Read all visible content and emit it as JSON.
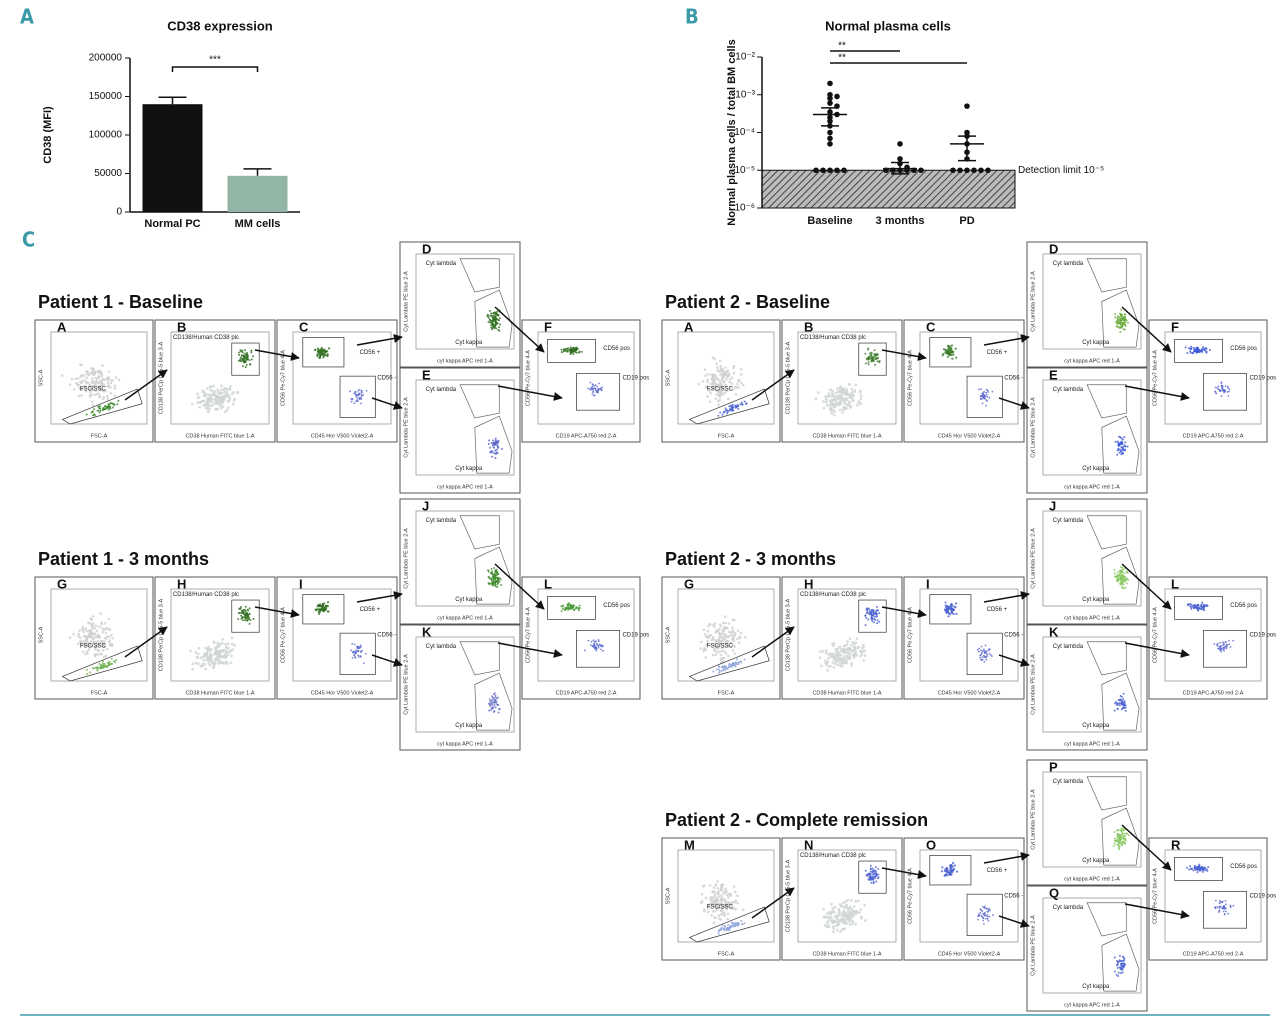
{
  "chart_data": [
    {
      "type": "bar",
      "panel": "A",
      "title": "CD38 expression",
      "y_label": "CD38 (MFI)",
      "categories": [
        "Normal PC",
        "MM cells"
      ],
      "values": [
        140000,
        47000
      ],
      "errors": [
        9000,
        9000
      ],
      "colors": [
        "#111111",
        "#93b5a5"
      ],
      "ylim": [
        0,
        200000
      ],
      "yticks": [
        0,
        50000,
        100000,
        150000,
        200000
      ],
      "significance": "***"
    },
    {
      "type": "dotplot",
      "panel": "B",
      "title": "Normal plasma cells",
      "y_label": "Normal plasma cells / total BM cells",
      "log_scale": true,
      "categories": [
        "Baseline",
        "3 months",
        "PD"
      ],
      "points": [
        [
          0.002,
          0.001,
          0.0009,
          0.0008,
          0.0006,
          0.0005,
          0.00035,
          0.0003,
          0.00025,
          0.0002,
          0.00015,
          0.0001,
          7e-05,
          5e-05,
          1e-05,
          1e-05,
          1e-05,
          1e-05,
          1e-05
        ],
        [
          5e-05,
          2e-05,
          1.5e-05,
          1.2e-05,
          1e-05,
          1e-05,
          1e-05,
          1e-05,
          1e-05,
          1e-05
        ],
        [
          0.0005,
          0.0001,
          8e-05,
          5e-05,
          3e-05,
          2e-05,
          1e-05,
          1e-05,
          1e-05,
          1e-05,
          1e-05,
          1e-05
        ]
      ],
      "means": [
        0.0003,
        1.1e-05,
        5e-05
      ],
      "error_low": [
        0.00015,
        8e-06,
        1.8e-05
      ],
      "error_high": [
        0.00045,
        1.6e-05,
        8e-05
      ],
      "ylim": [
        1e-06,
        0.01
      ],
      "yticks": [
        {
          "value": 1e-06,
          "label": "10⁻⁶"
        },
        {
          "value": 1e-05,
          "label": "10⁻⁵"
        },
        {
          "value": 0.0001,
          "label": "10⁻⁴"
        },
        {
          "value": 0.001,
          "label": "10⁻³"
        },
        {
          "value": 0.01,
          "label": "10⁻²"
        }
      ],
      "detection_limit": 1e-05,
      "detection_label": "Detection limit 10⁻⁵",
      "significance": [
        "**",
        "**"
      ]
    }
  ],
  "panel_c": {
    "label": "C",
    "plot_labels": [
      {
        "x": "FSC-A",
        "y": "SSC-A",
        "gates": [
          "FSC/SSC"
        ]
      },
      {
        "x": "CD38 Human FITC blue 1-A",
        "y": "CD138 PerCp Cy5-5 blue 3-A",
        "gates": [
          "CD138/Human CD38 plc"
        ]
      },
      {
        "x": "CD45 Hor V500 Violet2-A",
        "y": "CD56 Pe-Cy7 blue 4-A",
        "gates": [
          "CD56 +",
          "CD56 -"
        ]
      },
      {
        "x": "cyt kappa APC red 1-A",
        "y": "Cyt Lambda PE blue 2-A",
        "gates": [
          "Cyt lambda",
          "Cyt kappa"
        ]
      },
      {
        "x": "cyt kappa APC red 1-A",
        "y": "Cyt Lambda PE blue 2-A",
        "gates": [
          "Cyt lambda",
          "Cyt kappa"
        ]
      },
      {
        "x": "CD19 APC-A750 red 2-A",
        "y": "CD56 Pe-Cy7 blue 4-A",
        "gates": [
          "CD56 pos",
          "CD19 pos"
        ]
      }
    ],
    "rows": [
      {
        "title": "Patient 1 - Baseline",
        "letters": [
          "A",
          "B",
          "C",
          "D",
          "E",
          "F"
        ],
        "colors": [
          "#3c8a2a",
          "#2f6e1f",
          "#2f6e1f",
          "#2f6e1f",
          "#5560c8",
          "#2f6e1f"
        ]
      },
      {
        "title": "Patient 2 - Baseline",
        "letters": [
          "A",
          "B",
          "C",
          "D",
          "E",
          "F"
        ],
        "colors": [
          "#4a60d0",
          "#3f7d2c",
          "#3f7d2c",
          "#6aac3c",
          "#3a55d8",
          "#3a55d8"
        ]
      },
      {
        "title": "Patient 1 - 3 months",
        "letters": [
          "G",
          "H",
          "I",
          "J",
          "K",
          "L"
        ],
        "colors": [
          "#6ab04c",
          "#2f6e1f",
          "#2f6e1f",
          "#3f8a2a",
          "#6a70c8",
          "#4a9a38"
        ]
      },
      {
        "title": "Patient 2 - 3 months",
        "letters": [
          "G",
          "H",
          "I",
          "J",
          "K",
          "L"
        ],
        "colors": [
          "#8aa0d8",
          "#4a60d0",
          "#4a60d0",
          "#8ac860",
          "#4a60d0",
          "#4a60d0"
        ]
      },
      {
        "title": "Patient 2 - Complete remission",
        "letters": [
          "M",
          "N",
          "O",
          "P",
          "Q",
          "R"
        ],
        "colors": [
          "#8aa0d8",
          "#4a60d0",
          "#4a60d0",
          "#8ac860",
          "#4a60d0",
          "#4a60d0"
        ]
      }
    ]
  }
}
